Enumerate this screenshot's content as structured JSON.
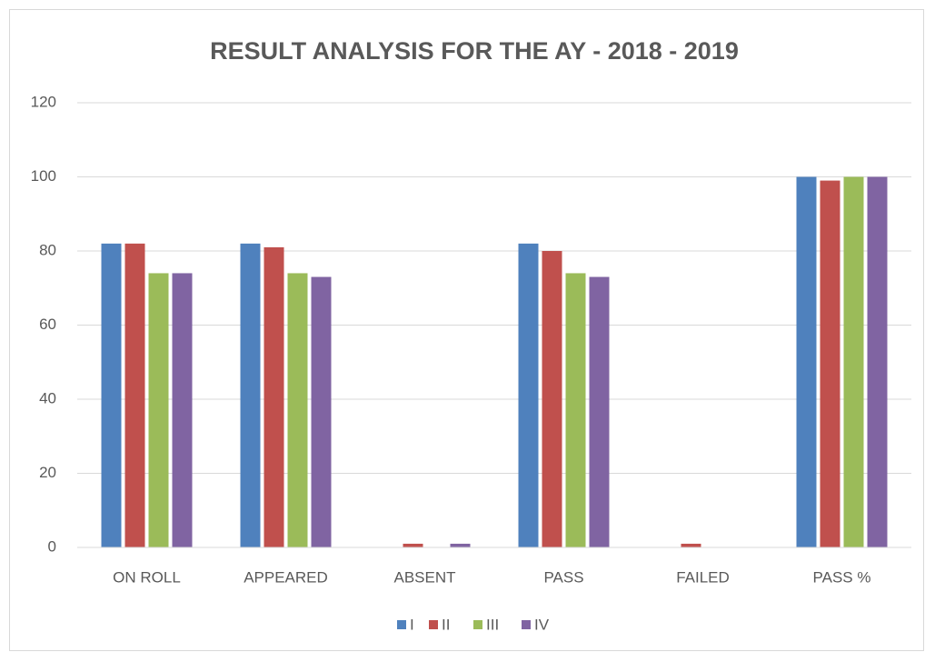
{
  "chart_data": {
    "type": "bar",
    "title": "RESULT ANALYSIS FOR THE AY - 2018 - 2019",
    "categories": [
      "ON ROLL",
      "APPEARED",
      "ABSENT",
      "PASS",
      "FAILED",
      "PASS %"
    ],
    "series": [
      {
        "name": "I",
        "color": "#4f81bd",
        "values": [
          82,
          82,
          0,
          82,
          0,
          100
        ]
      },
      {
        "name": "II",
        "color": "#c0504d",
        "values": [
          82,
          81,
          1,
          80,
          1,
          99
        ]
      },
      {
        "name": "III",
        "color": "#9bbb59",
        "values": [
          74,
          74,
          0,
          74,
          0,
          100
        ]
      },
      {
        "name": "IV",
        "color": "#8064a2",
        "values": [
          74,
          73,
          1,
          73,
          0,
          100
        ]
      }
    ],
    "ylim": [
      0,
      120
    ],
    "yticks": [
      0,
      20,
      40,
      60,
      80,
      100,
      120
    ],
    "grid": true,
    "legend": "bottom"
  }
}
